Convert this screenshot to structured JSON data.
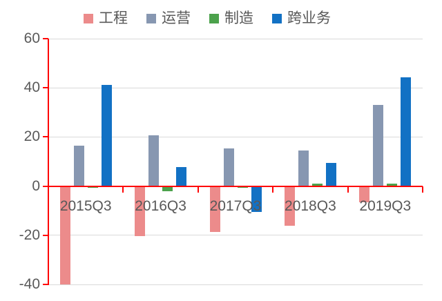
{
  "chart_data": {
    "type": "bar",
    "title": "",
    "categories": [
      "2015Q3",
      "2016Q3",
      "2017Q3",
      "2018Q3",
      "2019Q3"
    ],
    "series": [
      {
        "name": "工程",
        "color": "#EC8B8B",
        "values": [
          -40,
          -20.2,
          -18.6,
          -16,
          -6.5
        ]
      },
      {
        "name": "运营",
        "color": "#8797B1",
        "values": [
          16.5,
          20.6,
          15.4,
          14.4,
          33
        ]
      },
      {
        "name": "制造",
        "color": "#4CA24C",
        "values": [
          -0.7,
          -2.2,
          -0.8,
          1,
          1
        ]
      },
      {
        "name": "跨业务",
        "color": "#1271C4",
        "values": [
          41.3,
          7.8,
          -10.5,
          9.5,
          44.4
        ]
      }
    ],
    "ylim": [
      -40,
      60
    ],
    "yticks": [
      60,
      40,
      20,
      0,
      -20,
      -40
    ],
    "grid": true,
    "legend_position": "top",
    "axis_color": "#FF0000",
    "gridline_color": "#D9D9D9",
    "label_color": "#595959"
  }
}
